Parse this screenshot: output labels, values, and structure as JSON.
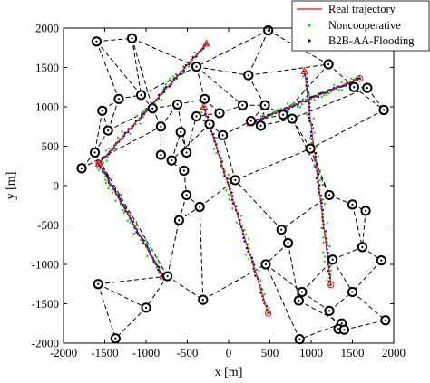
{
  "chart_data": {
    "type": "scatter",
    "title": "",
    "xlabel": "x [m]",
    "ylabel": "y [m]",
    "xlim": [
      -2000,
      2000
    ],
    "ylim": [
      -2000,
      2000
    ],
    "xticks": [
      -2000,
      -1500,
      -1000,
      -500,
      0,
      500,
      1000,
      1500,
      2000
    ],
    "yticks": [
      -2000,
      -1500,
      -1000,
      -500,
      0,
      500,
      1000,
      1500,
      2000
    ],
    "xtick_labels": [
      "-2000",
      "-1500",
      "-1000",
      "-500",
      "0",
      "500",
      "1000",
      "1500",
      "2000"
    ],
    "ytick_labels": [
      "-2000",
      "-1500",
      "-1000",
      "-500",
      "0",
      "500",
      "1000",
      "1500",
      "2000"
    ],
    "grid": false,
    "legend_position": "top-right",
    "colors": {
      "real": "#ff0000",
      "noncooperative": "#00dd00",
      "flooding": "#0000cc",
      "node": "#000000",
      "link": "#000000",
      "start": "#ff0000"
    },
    "series": [
      {
        "name": "Real trajectory",
        "marker": "line",
        "color": "#ff0000"
      },
      {
        "name": "Noncooperative",
        "marker": "dot",
        "color": "#00dd00"
      },
      {
        "name": "B2B-AA-Flooding",
        "marker": "dot",
        "color": "#0000cc"
      }
    ],
    "anchors": [
      [
        -1600,
        1830
      ],
      [
        -1170,
        1870
      ],
      [
        480,
        1970
      ],
      [
        -1330,
        1100
      ],
      [
        -1060,
        1150
      ],
      [
        -390,
        1510
      ],
      [
        240,
        1400
      ],
      [
        1210,
        1540
      ],
      [
        1520,
        1250
      ],
      [
        1680,
        1240
      ],
      [
        -1530,
        950
      ],
      [
        -1620,
        420
      ],
      [
        -920,
        980
      ],
      [
        -820,
        750
      ],
      [
        -620,
        1030
      ],
      [
        -290,
        1100
      ],
      [
        -110,
        920
      ],
      [
        170,
        1020
      ],
      [
        440,
        1020
      ],
      [
        390,
        760
      ],
      [
        660,
        900
      ],
      [
        770,
        850
      ],
      [
        1880,
        960
      ],
      [
        -1460,
        700
      ],
      [
        -1780,
        220
      ],
      [
        -820,
        390
      ],
      [
        -690,
        320
      ],
      [
        -580,
        680
      ],
      [
        -510,
        420
      ],
      [
        -390,
        880
      ],
      [
        -230,
        780
      ],
      [
        -70,
        640
      ],
      [
        270,
        820
      ],
      [
        -540,
        190
      ],
      [
        -510,
        -120
      ],
      [
        -600,
        -440
      ],
      [
        -350,
        -270
      ],
      [
        80,
        70
      ],
      [
        990,
        470
      ],
      [
        1220,
        -120
      ],
      [
        1500,
        -240
      ],
      [
        1660,
        -320
      ],
      [
        1620,
        -780
      ],
      [
        1850,
        -950
      ],
      [
        640,
        -560
      ],
      [
        720,
        -730
      ],
      [
        1260,
        -940
      ],
      [
        450,
        -1000
      ],
      [
        -740,
        -1150
      ],
      [
        -1580,
        -1250
      ],
      [
        -1000,
        -1550
      ],
      [
        -310,
        -1450
      ],
      [
        890,
        -1350
      ],
      [
        1500,
        -1350
      ],
      [
        850,
        -1460
      ],
      [
        1220,
        -1590
      ],
      [
        1370,
        -1750
      ],
      [
        1330,
        -1820
      ],
      [
        1400,
        -1830
      ],
      [
        1900,
        -1710
      ],
      [
        -1370,
        -1940
      ],
      [
        860,
        -1950
      ]
    ],
    "links": [
      [
        0,
        1
      ],
      [
        0,
        3
      ],
      [
        0,
        4
      ],
      [
        1,
        5
      ],
      [
        2,
        5
      ],
      [
        2,
        6
      ],
      [
        2,
        7
      ],
      [
        1,
        4
      ],
      [
        3,
        4
      ],
      [
        3,
        10
      ],
      [
        4,
        5
      ],
      [
        4,
        12
      ],
      [
        5,
        15
      ],
      [
        5,
        6
      ],
      [
        5,
        17
      ],
      [
        6,
        18
      ],
      [
        6,
        7
      ],
      [
        7,
        8
      ],
      [
        8,
        9
      ],
      [
        8,
        22
      ],
      [
        7,
        20
      ],
      [
        9,
        22
      ],
      [
        10,
        11
      ],
      [
        10,
        23
      ],
      [
        11,
        23
      ],
      [
        11,
        24
      ],
      [
        23,
        12
      ],
      [
        12,
        13
      ],
      [
        12,
        14
      ],
      [
        14,
        15
      ],
      [
        15,
        16
      ],
      [
        16,
        17
      ],
      [
        17,
        18
      ],
      [
        18,
        19
      ],
      [
        18,
        20
      ],
      [
        20,
        21
      ],
      [
        19,
        21
      ],
      [
        13,
        14
      ],
      [
        13,
        25
      ],
      [
        25,
        26
      ],
      [
        26,
        27
      ],
      [
        27,
        28
      ],
      [
        28,
        29
      ],
      [
        29,
        30
      ],
      [
        30,
        31
      ],
      [
        31,
        32
      ],
      [
        32,
        18
      ],
      [
        16,
        29
      ],
      [
        14,
        28
      ],
      [
        25,
        33
      ],
      [
        33,
        34
      ],
      [
        34,
        35
      ],
      [
        35,
        36
      ],
      [
        36,
        37
      ],
      [
        37,
        31
      ],
      [
        37,
        38
      ],
      [
        38,
        21
      ],
      [
        38,
        39
      ],
      [
        39,
        40
      ],
      [
        40,
        41
      ],
      [
        41,
        42
      ],
      [
        42,
        43
      ],
      [
        40,
        42
      ],
      [
        39,
        44
      ],
      [
        44,
        45
      ],
      [
        45,
        47
      ],
      [
        44,
        37
      ],
      [
        47,
        52
      ],
      [
        52,
        54
      ],
      [
        54,
        56
      ],
      [
        52,
        46
      ],
      [
        46,
        42
      ],
      [
        46,
        53
      ],
      [
        53,
        59
      ],
      [
        43,
        53
      ],
      [
        52,
        55
      ],
      [
        55,
        57
      ],
      [
        57,
        58
      ],
      [
        58,
        59
      ],
      [
        55,
        53
      ],
      [
        48,
        49
      ],
      [
        49,
        50
      ],
      [
        48,
        50
      ],
      [
        48,
        51
      ],
      [
        50,
        60
      ],
      [
        49,
        60
      ],
      [
        51,
        47
      ],
      [
        48,
        35
      ],
      [
        48,
        11
      ],
      [
        51,
        36
      ],
      [
        56,
        61
      ],
      [
        61,
        47
      ],
      [
        56,
        57
      ],
      [
        22,
        38
      ],
      [
        19,
        32
      ],
      [
        30,
        26
      ],
      [
        24,
        13
      ],
      [
        36,
        34
      ],
      [
        45,
        54
      ],
      [
        21,
        39
      ],
      [
        20,
        32
      ],
      [
        9,
        21
      ],
      [
        1,
        12
      ],
      [
        3,
        23
      ]
    ],
    "trajectories": [
      {
        "start": [
          -270,
          1800
        ],
        "end": [
          -1570,
          280
        ]
      },
      {
        "start": [
          -1570,
          280
        ],
        "end": [
          -790,
          -1160
        ]
      },
      {
        "start": [
          -300,
          1000
        ],
        "end": [
          480,
          -1620
        ]
      },
      {
        "start": [
          920,
          1450
        ],
        "end": [
          1240,
          -1260
        ]
      },
      {
        "start": [
          260,
          790
        ],
        "end": [
          1590,
          1360
        ]
      }
    ]
  }
}
